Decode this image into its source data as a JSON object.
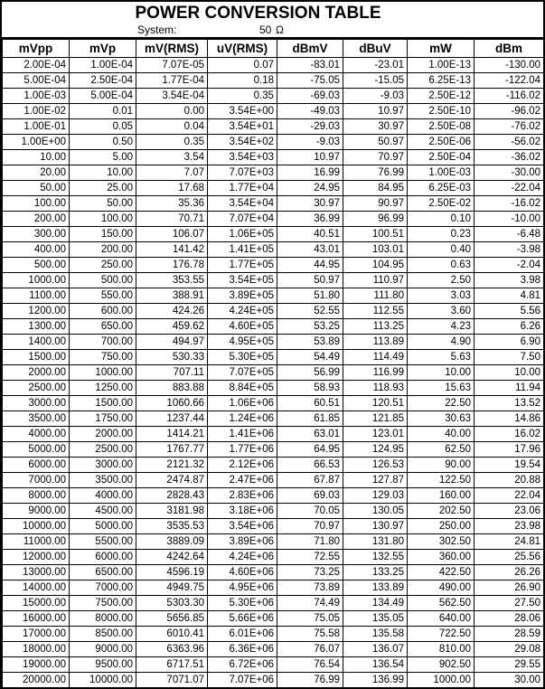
{
  "header": {
    "title": "POWER CONVERSION TABLE",
    "system_label": "System:",
    "system_value": "50",
    "system_unit": "Ω"
  },
  "colors": {
    "border": "#000000",
    "background": "#ffffff",
    "text": "#000000"
  },
  "table": {
    "columns": [
      "mVpp",
      "mVp",
      "mV(RMS)",
      "uV(RMS)",
      "dBmV",
      "dBuV",
      "mW",
      "dBm"
    ],
    "rows": [
      [
        "2.00E-04",
        "1.00E-04",
        "7.07E-05",
        "0.07",
        "-83.01",
        "-23.01",
        "1.00E-13",
        "-130.00"
      ],
      [
        "5.00E-04",
        "2.50E-04",
        "1.77E-04",
        "0.18",
        "-75.05",
        "-15.05",
        "6.25E-13",
        "-122.04"
      ],
      [
        "1.00E-03",
        "5.00E-04",
        "3.54E-04",
        "0.35",
        "-69.03",
        "-9.03",
        "2.50E-12",
        "-116.02"
      ],
      [
        "1.00E-02",
        "0.01",
        "0.00",
        "3.54E+00",
        "-49.03",
        "10.97",
        "2.50E-10",
        "-96.02"
      ],
      [
        "1.00E-01",
        "0.05",
        "0.04",
        "3.54E+01",
        "-29.03",
        "30.97",
        "2.50E-08",
        "-76.02"
      ],
      [
        "1.00E+00",
        "0.50",
        "0.35",
        "3.54E+02",
        "-9.03",
        "50.97",
        "2.50E-06",
        "-56.02"
      ],
      [
        "10.00",
        "5.00",
        "3.54",
        "3.54E+03",
        "10.97",
        "70.97",
        "2.50E-04",
        "-36.02"
      ],
      [
        "20.00",
        "10.00",
        "7.07",
        "7.07E+03",
        "16.99",
        "76.99",
        "1.00E-03",
        "-30.00"
      ],
      [
        "50.00",
        "25.00",
        "17.68",
        "1.77E+04",
        "24.95",
        "84.95",
        "6.25E-03",
        "-22.04"
      ],
      [
        "100.00",
        "50.00",
        "35.36",
        "3.54E+04",
        "30.97",
        "90.97",
        "2.50E-02",
        "-16.02"
      ],
      [
        "200.00",
        "100.00",
        "70.71",
        "7.07E+04",
        "36.99",
        "96.99",
        "0.10",
        "-10.00"
      ],
      [
        "300.00",
        "150.00",
        "106.07",
        "1.06E+05",
        "40.51",
        "100.51",
        "0.23",
        "-6.48"
      ],
      [
        "400.00",
        "200.00",
        "141.42",
        "1.41E+05",
        "43.01",
        "103.01",
        "0.40",
        "-3.98"
      ],
      [
        "500.00",
        "250.00",
        "176.78",
        "1.77E+05",
        "44.95",
        "104.95",
        "0.63",
        "-2.04"
      ],
      [
        "1000.00",
        "500.00",
        "353.55",
        "3.54E+05",
        "50.97",
        "110.97",
        "2.50",
        "3.98"
      ],
      [
        "1100.00",
        "550.00",
        "388.91",
        "3.89E+05",
        "51.80",
        "111.80",
        "3.03",
        "4.81"
      ],
      [
        "1200.00",
        "600.00",
        "424.26",
        "4.24E+05",
        "52.55",
        "112.55",
        "3.60",
        "5.56"
      ],
      [
        "1300.00",
        "650.00",
        "459.62",
        "4.60E+05",
        "53.25",
        "113.25",
        "4.23",
        "6.26"
      ],
      [
        "1400.00",
        "700.00",
        "494.97",
        "4.95E+05",
        "53.89",
        "113.89",
        "4.90",
        "6.90"
      ],
      [
        "1500.00",
        "750.00",
        "530.33",
        "5.30E+05",
        "54.49",
        "114.49",
        "5.63",
        "7.50"
      ],
      [
        "2000.00",
        "1000.00",
        "707.11",
        "7.07E+05",
        "56.99",
        "116.99",
        "10.00",
        "10.00"
      ],
      [
        "2500.00",
        "1250.00",
        "883.88",
        "8.84E+05",
        "58.93",
        "118.93",
        "15.63",
        "11.94"
      ],
      [
        "3000.00",
        "1500.00",
        "1060.66",
        "1.06E+06",
        "60.51",
        "120.51",
        "22.50",
        "13.52"
      ],
      [
        "3500.00",
        "1750.00",
        "1237.44",
        "1.24E+06",
        "61.85",
        "121.85",
        "30.63",
        "14.86"
      ],
      [
        "4000.00",
        "2000.00",
        "1414.21",
        "1.41E+06",
        "63.01",
        "123.01",
        "40.00",
        "16.02"
      ],
      [
        "5000.00",
        "2500.00",
        "1767.77",
        "1.77E+06",
        "64.95",
        "124.95",
        "62.50",
        "17.96"
      ],
      [
        "6000.00",
        "3000.00",
        "2121.32",
        "2.12E+06",
        "66.53",
        "126.53",
        "90.00",
        "19.54"
      ],
      [
        "7000.00",
        "3500.00",
        "2474.87",
        "2.47E+06",
        "67.87",
        "127.87",
        "122.50",
        "20.88"
      ],
      [
        "8000.00",
        "4000.00",
        "2828.43",
        "2.83E+06",
        "69.03",
        "129.03",
        "160.00",
        "22.04"
      ],
      [
        "9000.00",
        "4500.00",
        "3181.98",
        "3.18E+06",
        "70.05",
        "130.05",
        "202.50",
        "23.06"
      ],
      [
        "10000.00",
        "5000.00",
        "3535.53",
        "3.54E+06",
        "70.97",
        "130.97",
        "250.00",
        "23.98"
      ],
      [
        "11000.00",
        "5500.00",
        "3889.09",
        "3.89E+06",
        "71.80",
        "131.80",
        "302.50",
        "24.81"
      ],
      [
        "12000.00",
        "6000.00",
        "4242.64",
        "4.24E+06",
        "72.55",
        "132.55",
        "360.00",
        "25.56"
      ],
      [
        "13000.00",
        "6500.00",
        "4596.19",
        "4.60E+06",
        "73.25",
        "133.25",
        "422.50",
        "26.26"
      ],
      [
        "14000.00",
        "7000.00",
        "4949.75",
        "4.95E+06",
        "73.89",
        "133.89",
        "490.00",
        "26.90"
      ],
      [
        "15000.00",
        "7500.00",
        "5303.30",
        "5.30E+06",
        "74.49",
        "134.49",
        "562.50",
        "27.50"
      ],
      [
        "16000.00",
        "8000.00",
        "5656.85",
        "5.66E+06",
        "75.05",
        "135.05",
        "640.00",
        "28.06"
      ],
      [
        "17000.00",
        "8500.00",
        "6010.41",
        "6.01E+06",
        "75.58",
        "135.58",
        "722.50",
        "28.59"
      ],
      [
        "18000.00",
        "9000.00",
        "6363.96",
        "6.36E+06",
        "76.07",
        "136.07",
        "810.00",
        "29.08"
      ],
      [
        "19000.00",
        "9500.00",
        "6717.51",
        "6.72E+06",
        "76.54",
        "136.54",
        "902.50",
        "29.55"
      ],
      [
        "20000.00",
        "10000.00",
        "7071.07",
        "7.07E+06",
        "76.99",
        "136.99",
        "1000.00",
        "30.00"
      ]
    ]
  }
}
